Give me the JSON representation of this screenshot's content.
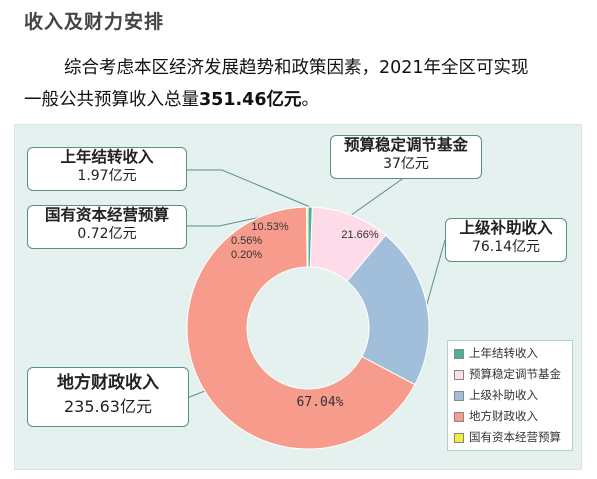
{
  "page": {
    "title": "收入及财力安排",
    "para_line1": "综合考虑本区经济发展趋势和政策因素，2021年全区可实现",
    "para_line2_prefix": "一般公共预算收入总量",
    "para_line2_value": "351.46亿元",
    "para_line2_suffix": "。"
  },
  "chart_data": {
    "type": "pie",
    "variant": "donut",
    "categories": [
      "上年结转收入",
      "预算稳定调节基金",
      "上级补助收入",
      "地方财政收入",
      "国有资本经营预算"
    ],
    "values": [
      1.97,
      37,
      76.14,
      235.63,
      0.72
    ],
    "percent_labels": [
      "0.56%",
      "10.53%",
      "21.66%",
      "67.04%",
      "0.20%"
    ],
    "value_labels": [
      "1.97亿元",
      "37亿元",
      "76.14亿元",
      "235.63亿元",
      "0.72亿元"
    ],
    "unit": "亿元",
    "colors": [
      "#4fb09a",
      "#fddbe8",
      "#a1bfda",
      "#f79b8c",
      "#f4ec3c"
    ],
    "legend": {
      "position": "bottom-right",
      "entries": [
        "上年结转收入",
        "预算稳定调节基金",
        "上级补助收入",
        "地方财政收入",
        "国有资本经营预算"
      ]
    }
  }
}
